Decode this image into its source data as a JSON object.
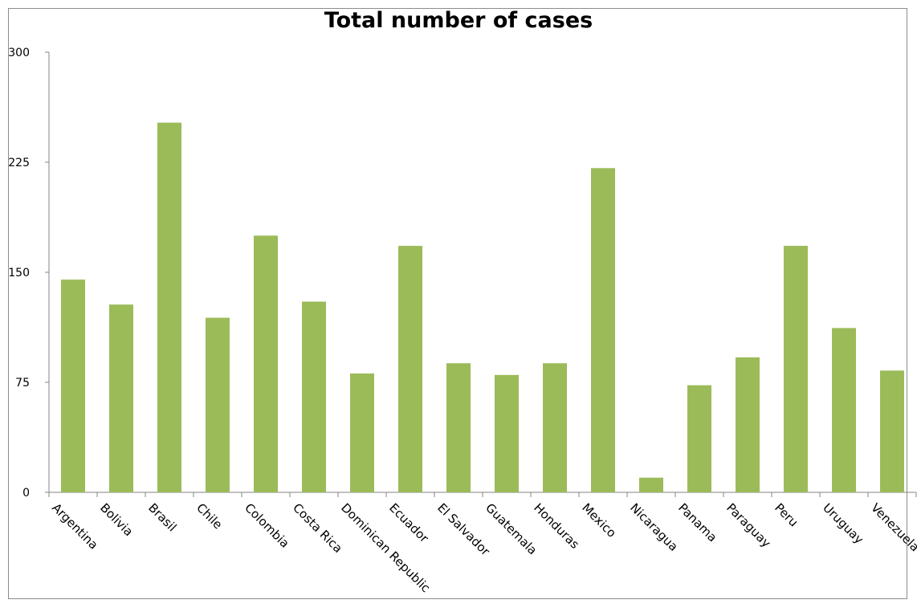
{
  "chart_data": {
    "type": "bar",
    "title": "Total number of cases",
    "xlabel": "",
    "ylabel": "",
    "categories": [
      "Argentina",
      "Bolivia",
      "Brasil",
      "Chile",
      "Colombia",
      "Costa Rica",
      "Dominican Republic",
      "Ecuador",
      "El Salvador",
      "Guatemala",
      "Honduras",
      "Mexico",
      "Nicaragua",
      "Panama",
      "Paraguay",
      "Peru",
      "Uruguay",
      "Venezuela"
    ],
    "values": [
      145,
      128,
      252,
      119,
      175,
      130,
      81,
      168,
      88,
      80,
      88,
      221,
      10,
      73,
      92,
      168,
      112,
      83
    ],
    "ylim": [
      0,
      300
    ],
    "yticks": [
      "0",
      "75",
      "150",
      "225",
      "300"
    ],
    "grid": false,
    "legend": "none",
    "bar_color": "#9bbb59",
    "axis_color": "#868686"
  }
}
